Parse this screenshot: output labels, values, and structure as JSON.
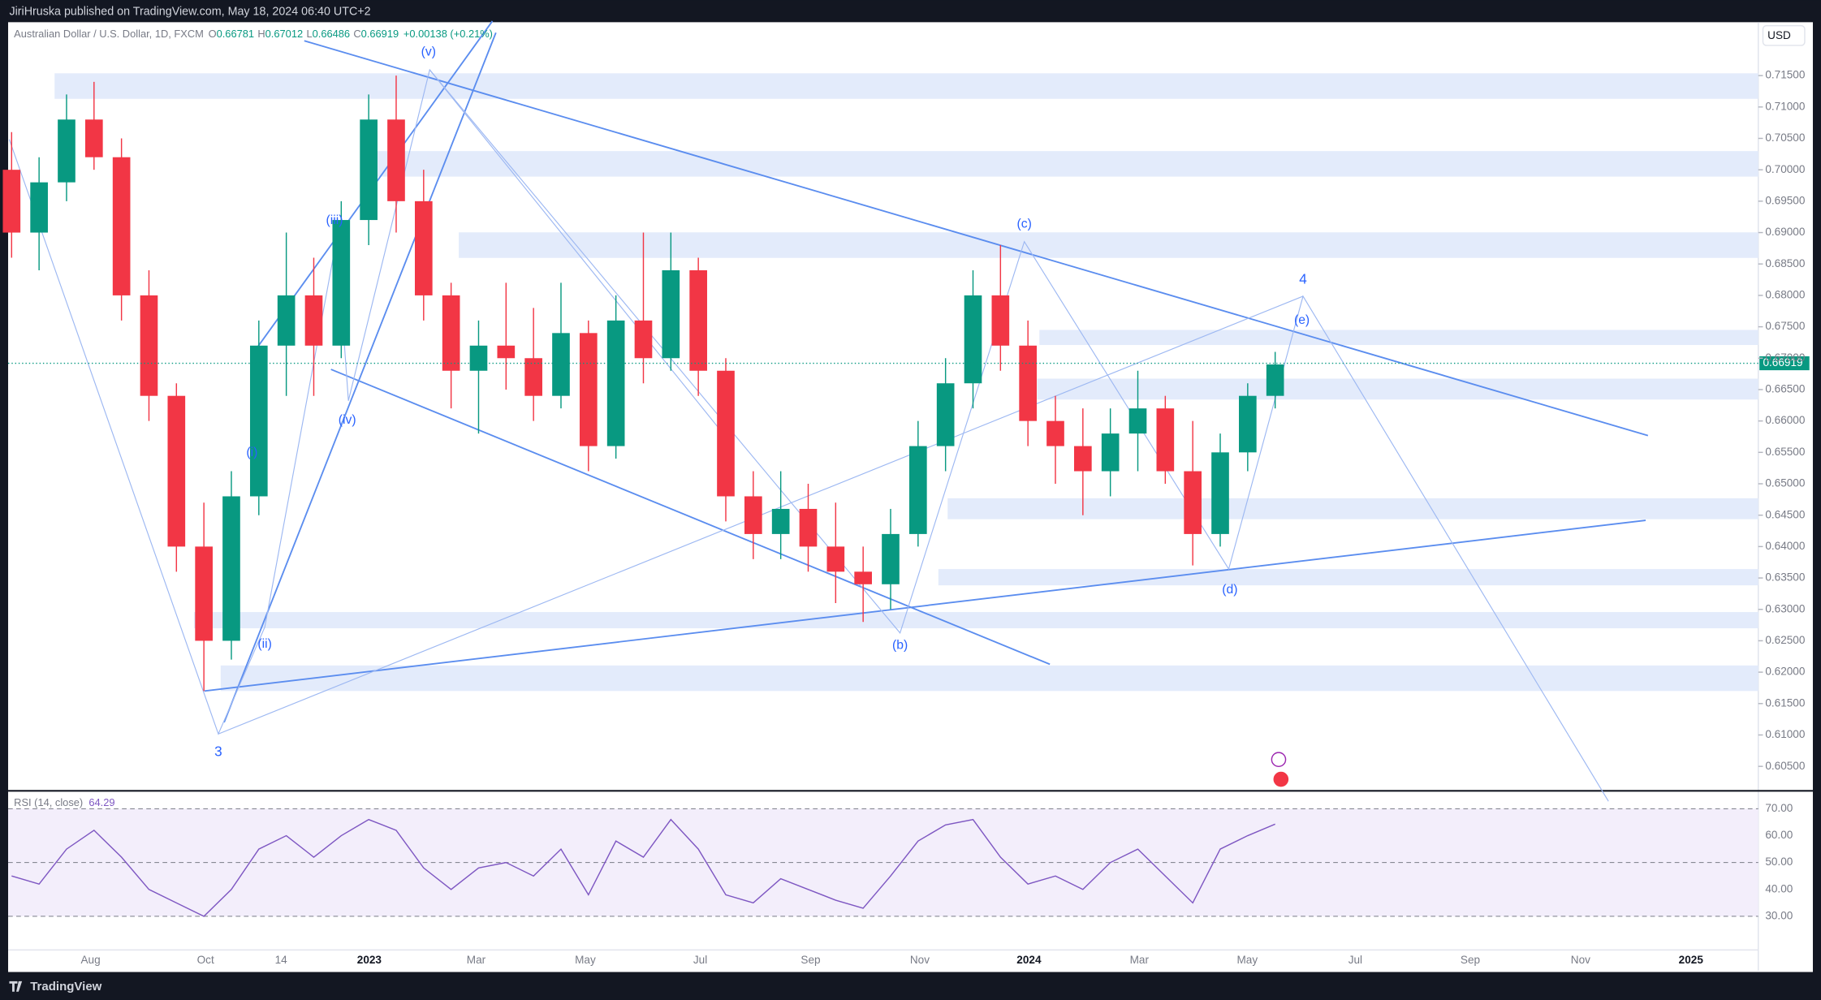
{
  "header": {
    "published": "JiriHruska published on TradingView.com, May 18, 2024 06:40 UTC+2"
  },
  "footer": {
    "brand": "TradingView"
  },
  "currency_button": "USD",
  "chart_data": [
    {
      "type": "candlestick",
      "title": "Australian Dollar / U.S. Dollar, 1D, FXCM",
      "ohlc": {
        "o_label": "O",
        "open": 0.66781,
        "h_label": "H",
        "high": 0.67012,
        "l_label": "L",
        "low": 0.66486,
        "c_label": "C",
        "close": 0.66919,
        "change": "+0.00138 (+0.21%)"
      },
      "price_tag": {
        "value": 0.66919,
        "label": "0.66919"
      },
      "up_color": "#089981",
      "down_color": "#f23645",
      "open": [
        0.7,
        0.69,
        0.698,
        0.708,
        0.702,
        0.68,
        0.664,
        0.64,
        0.625,
        0.648,
        0.672,
        0.68,
        0.672,
        0.692,
        0.708,
        0.695,
        0.68,
        0.668,
        0.672,
        0.67,
        0.664,
        0.674,
        0.656,
        0.676,
        0.67,
        0.684,
        0.668,
        0.648,
        0.642,
        0.646,
        0.64,
        0.636,
        0.634,
        0.642,
        0.656,
        0.666,
        0.68,
        0.672,
        0.66,
        0.656,
        0.652,
        0.658,
        0.662,
        0.652,
        0.642,
        0.655,
        0.664
      ],
      "high": [
        0.706,
        0.702,
        0.712,
        0.714,
        0.705,
        0.684,
        0.666,
        0.647,
        0.652,
        0.676,
        0.69,
        0.686,
        0.695,
        0.712,
        0.715,
        0.7,
        0.682,
        0.676,
        0.682,
        0.678,
        0.682,
        0.676,
        0.68,
        0.69,
        0.69,
        0.686,
        0.67,
        0.652,
        0.652,
        0.65,
        0.647,
        0.64,
        0.646,
        0.66,
        0.67,
        0.684,
        0.688,
        0.676,
        0.664,
        0.662,
        0.662,
        0.668,
        0.664,
        0.66,
        0.658,
        0.666,
        0.671
      ],
      "low": [
        0.686,
        0.684,
        0.695,
        0.7,
        0.676,
        0.66,
        0.636,
        0.617,
        0.622,
        0.645,
        0.664,
        0.664,
        0.67,
        0.688,
        0.69,
        0.676,
        0.662,
        0.658,
        0.665,
        0.66,
        0.662,
        0.652,
        0.654,
        0.666,
        0.668,
        0.664,
        0.644,
        0.638,
        0.638,
        0.636,
        0.631,
        0.628,
        0.63,
        0.64,
        0.652,
        0.662,
        0.668,
        0.656,
        0.65,
        0.645,
        0.648,
        0.652,
        0.65,
        0.637,
        0.64,
        0.652,
        0.662
      ],
      "close": [
        0.69,
        0.698,
        0.708,
        0.702,
        0.68,
        0.664,
        0.64,
        0.625,
        0.648,
        0.672,
        0.68,
        0.672,
        0.692,
        0.708,
        0.695,
        0.68,
        0.668,
        0.672,
        0.67,
        0.664,
        0.674,
        0.656,
        0.676,
        0.67,
        0.684,
        0.668,
        0.648,
        0.642,
        0.646,
        0.64,
        0.636,
        0.634,
        0.642,
        0.656,
        0.666,
        0.68,
        0.672,
        0.66,
        0.656,
        0.652,
        0.658,
        0.662,
        0.652,
        0.642,
        0.655,
        0.664,
        0.669
      ],
      "ylim": [
        0.6011,
        0.7235
      ],
      "yticks": [
        {
          "value": 0.605,
          "label": "0.60500"
        },
        {
          "value": 0.61,
          "label": "0.61000"
        },
        {
          "value": 0.615,
          "label": "0.61500"
        },
        {
          "value": 0.62,
          "label": "0.62000"
        },
        {
          "value": 0.625,
          "label": "0.62500"
        },
        {
          "value": 0.63,
          "label": "0.63000"
        },
        {
          "value": 0.635,
          "label": "0.63500"
        },
        {
          "value": 0.64,
          "label": "0.64000"
        },
        {
          "value": 0.645,
          "label": "0.64500"
        },
        {
          "value": 0.65,
          "label": "0.65000"
        },
        {
          "value": 0.655,
          "label": "0.65500"
        },
        {
          "value": 0.66,
          "label": "0.66000"
        },
        {
          "value": 0.665,
          "label": "0.66500"
        },
        {
          "value": 0.67,
          "label": "0.67000"
        },
        {
          "value": 0.675,
          "label": "0.67500"
        },
        {
          "value": 0.68,
          "label": "0.68000"
        },
        {
          "value": 0.685,
          "label": "0.68500"
        },
        {
          "value": 0.69,
          "label": "0.69000"
        },
        {
          "value": 0.695,
          "label": "0.69500"
        },
        {
          "value": 0.7,
          "label": "0.70000"
        },
        {
          "value": 0.705,
          "label": "0.70500"
        },
        {
          "value": 0.71,
          "label": "0.71000"
        },
        {
          "value": 0.715,
          "label": "0.71500"
        }
      ],
      "xtick_labels": [
        "Aug",
        "Oct",
        "14",
        "2023",
        "Mar",
        "May",
        "Jul",
        "Sep",
        "Nov",
        "2024",
        "Mar",
        "May",
        "Jul",
        "Sep",
        "Nov",
        "2025"
      ],
      "annotations": [
        "(v)",
        "(iii)",
        "(iv)",
        "(i)",
        "(ii)",
        "3",
        "(b)",
        "(c)",
        "(d)",
        "(e)",
        "4"
      ]
    },
    {
      "type": "line",
      "title": "RSI (14, close)",
      "last_value": 64.29,
      "color": "#7e57c2",
      "values": [
        45,
        42,
        55,
        62,
        52,
        40,
        35,
        30,
        40,
        55,
        60,
        52,
        60,
        66,
        62,
        48,
        40,
        48,
        50,
        45,
        55,
        38,
        58,
        52,
        66,
        55,
        38,
        35,
        44,
        40,
        36,
        33,
        45,
        58,
        64,
        66,
        52,
        42,
        45,
        40,
        50,
        55,
        45,
        35,
        55,
        60,
        64.29
      ],
      "ylim": [
        17.5,
        75.8
      ],
      "yticks": [
        {
          "value": 30,
          "label": "30.00"
        },
        {
          "value": 40,
          "label": "40.00"
        },
        {
          "value": 50,
          "label": "50.00"
        },
        {
          "value": 60,
          "label": "60.00"
        },
        {
          "value": 70,
          "label": "70.00"
        }
      ]
    }
  ]
}
